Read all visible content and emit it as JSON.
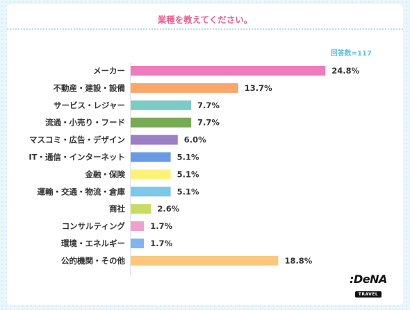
{
  "header": {
    "title": "業種を教えてください。"
  },
  "sample_note": "回答数=117",
  "brand": {
    "name": ":DeNA",
    "sub": "TRAVEL"
  },
  "chart_data": {
    "type": "bar",
    "orientation": "horizontal",
    "title": "業種を教えてください。",
    "categories": [
      "メーカー",
      "不動産・建設・設備",
      "サービス・レジャー",
      "流通・小売り・フード",
      "マスコミ・広告・デザイン",
      "IT・通信・インターネット",
      "金融・保険",
      "運輸・交通・物流・倉庫",
      "商社",
      "コンサルティング",
      "環境・エネルギー",
      "公的機関・その他"
    ],
    "values": [
      24.8,
      13.7,
      7.7,
      7.7,
      6.0,
      5.1,
      5.1,
      5.1,
      2.6,
      1.7,
      1.7,
      18.8
    ],
    "value_labels": [
      "24.8%",
      "13.7%",
      "7.7%",
      "7.7%",
      "6.0%",
      "5.1%",
      "5.1%",
      "5.1%",
      "2.6%",
      "1.7%",
      "1.7%",
      "18.8%"
    ],
    "colors": [
      "#ef7bbf",
      "#fba66a",
      "#7ccbc4",
      "#79aa55",
      "#9a80c4",
      "#6a9ae3",
      "#fcf27a",
      "#7dc8e8",
      "#c6dc62",
      "#f0a0cc",
      "#7fb4ee",
      "#f9c87d"
    ],
    "xlim": [
      0,
      25
    ],
    "grid": false,
    "legend": "none"
  }
}
